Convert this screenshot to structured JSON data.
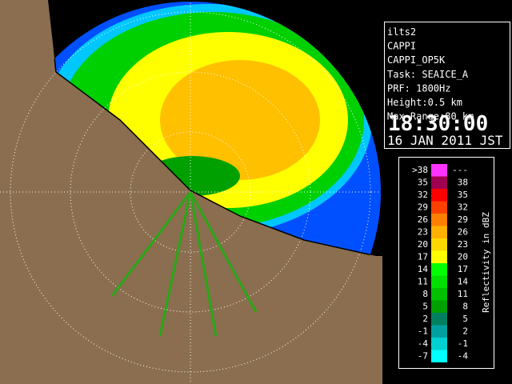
{
  "info_panel": {
    "lines": [
      "ilts2",
      "CAPPI",
      "CAPPI_OP5K",
      "Task: SEAICE_A",
      "PRF: 1800Hz",
      "Height:0.5 km",
      "Max Range:80 km"
    ],
    "time": "18:30:00",
    "date": "16 JAN 2011 JST"
  },
  "legend": {
    "title": "Reflectivity in dBZ",
    "rows": [
      {
        "low": ">38",
        "high": "---",
        "color": "#ff33ff"
      },
      {
        "low": "35",
        "high": "38",
        "color": "#a00050"
      },
      {
        "low": "32",
        "high": "35",
        "color": "#ff0000"
      },
      {
        "low": "29",
        "high": "32",
        "color": "#ff4000"
      },
      {
        "low": "26",
        "high": "29",
        "color": "#ff8000"
      },
      {
        "low": "23",
        "high": "26",
        "color": "#ffb000"
      },
      {
        "low": "20",
        "high": "23",
        "color": "#ffd800"
      },
      {
        "low": "17",
        "high": "20",
        "color": "#ffff00"
      },
      {
        "low": "14",
        "high": "17",
        "color": "#00ff00"
      },
      {
        "low": "11",
        "high": "14",
        "color": "#00e000"
      },
      {
        "low": "8",
        "high": "11",
        "color": "#00c000"
      },
      {
        "low": "5",
        "high": "8",
        "color": "#00a000"
      },
      {
        "low": "2",
        "high": "5",
        "color": "#008060"
      },
      {
        "low": "-1",
        "high": "2",
        "color": "#00a0a0"
      },
      {
        "low": "-4",
        "high": "-1",
        "color": "#00d0d0"
      },
      {
        "low": "-7",
        "high": "-4",
        "color": "#00ffff"
      }
    ]
  }
}
